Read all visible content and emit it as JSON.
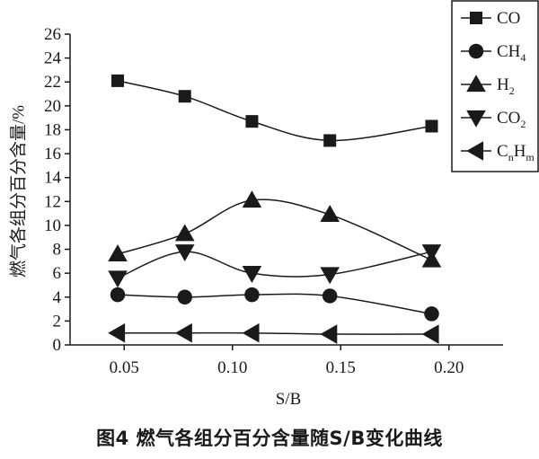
{
  "caption": "图4   燃气各组分百分含量随S/B变化曲线",
  "chart_data": {
    "type": "line",
    "xlabel": "S/B",
    "ylabel": "燃气各组分百分含量/%",
    "x": [
      0.047,
      0.078,
      0.109,
      0.145,
      0.192
    ],
    "xlim": [
      0.025,
      0.225
    ],
    "ylim": [
      0,
      26
    ],
    "xticks": [
      "0.05",
      "0.10",
      "0.15",
      "0.20"
    ],
    "xtick_values": [
      0.05,
      0.1,
      0.15,
      0.2
    ],
    "yticks": [
      "0",
      "2",
      "4",
      "6",
      "8",
      "10",
      "12",
      "14",
      "16",
      "18",
      "20",
      "22",
      "24",
      "26"
    ],
    "legend_position": "top-right",
    "series": [
      {
        "name": "CO",
        "legend_main": "CO",
        "legend_sub": "",
        "legend_main2": "",
        "legend_sub2": "",
        "marker": "square",
        "values": [
          22.1,
          20.8,
          18.7,
          17.1,
          18.3
        ]
      },
      {
        "name": "CH4",
        "legend_main": "CH",
        "legend_sub": "4",
        "legend_main2": "",
        "legend_sub2": "",
        "marker": "circle",
        "values": [
          4.2,
          4.0,
          4.2,
          4.1,
          2.6
        ]
      },
      {
        "name": "H2",
        "legend_main": "H",
        "legend_sub": "2",
        "legend_main2": "",
        "legend_sub2": "",
        "marker": "triangle-up",
        "values": [
          7.6,
          9.3,
          12.1,
          10.9,
          7.1
        ]
      },
      {
        "name": "CO2",
        "legend_main": "CO",
        "legend_sub": "2",
        "legend_main2": "",
        "legend_sub2": "",
        "marker": "triangle-down",
        "values": [
          5.6,
          7.8,
          6.0,
          5.9,
          7.8
        ]
      },
      {
        "name": "CnHm",
        "legend_main": "C",
        "legend_sub": "n",
        "legend_main2": "H",
        "legend_sub2": "m",
        "marker": "triangle-left",
        "values": [
          1.0,
          1.0,
          1.0,
          0.9,
          0.9
        ]
      }
    ]
  }
}
